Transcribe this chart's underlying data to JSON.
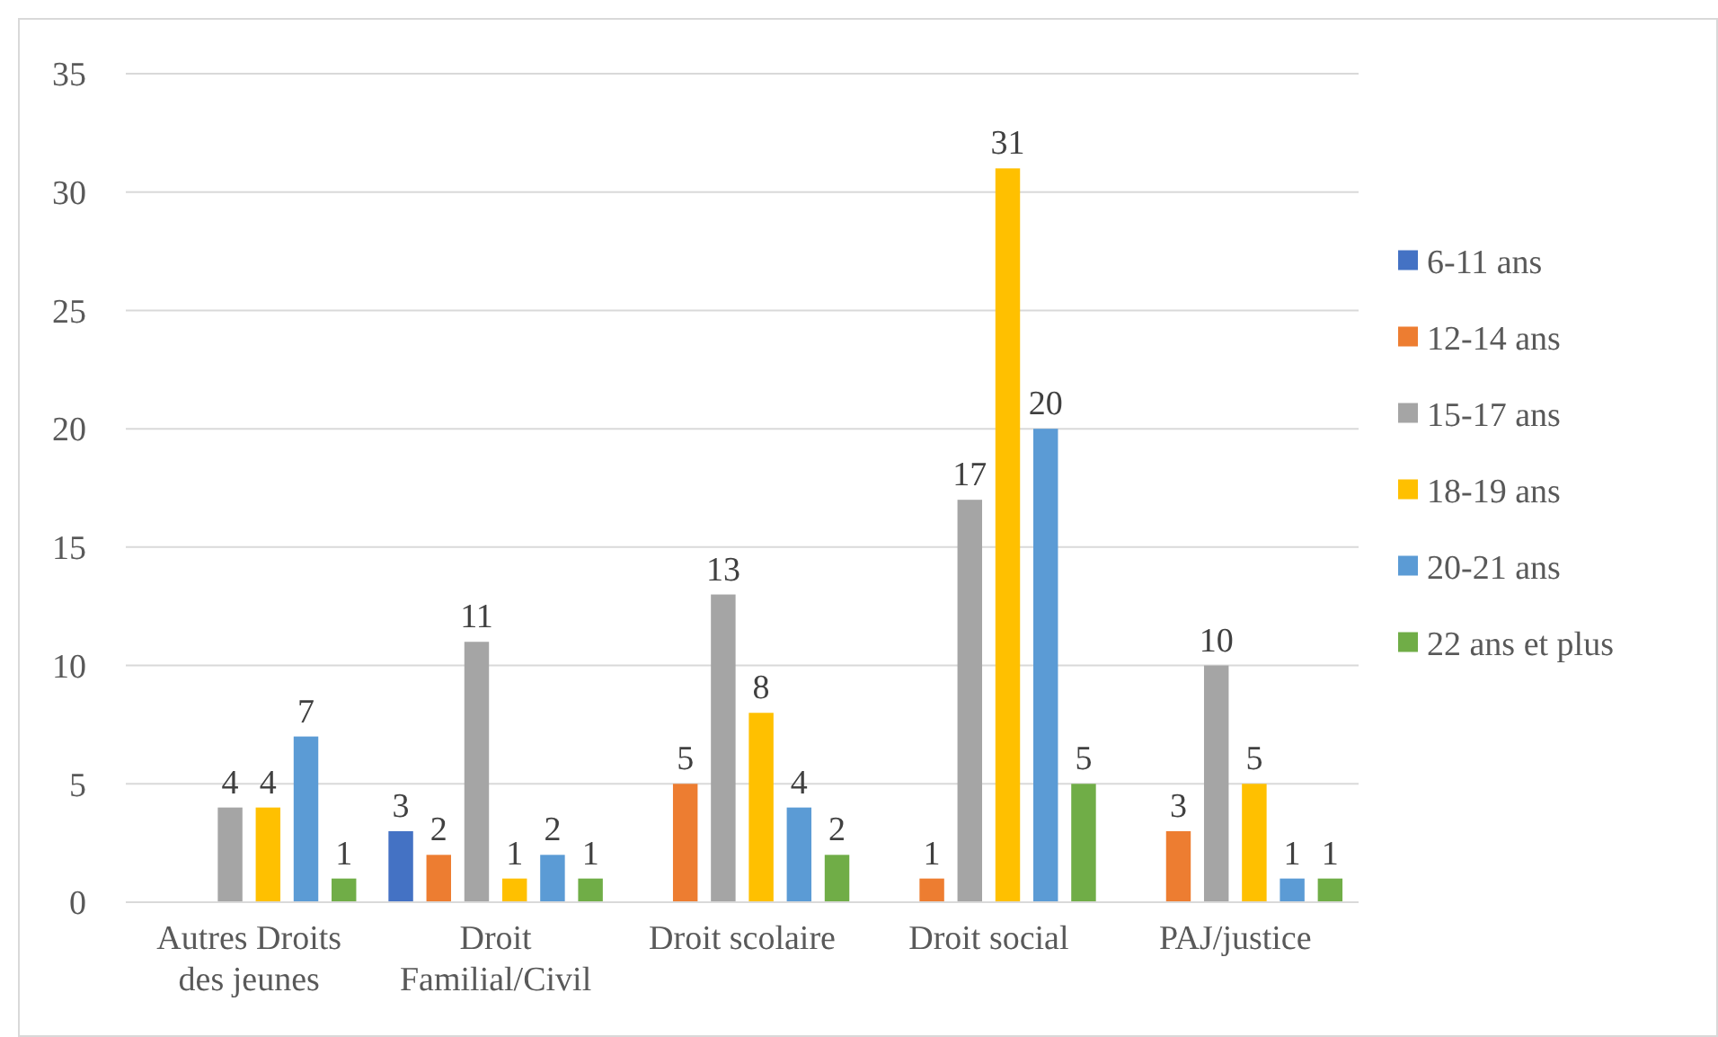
{
  "chart_data": {
    "type": "bar",
    "categories": [
      "Autres Droits des jeunes",
      "Droit Familial/Civil",
      "Droit scolaire",
      "Droit social",
      "PAJ/justice"
    ],
    "series": [
      {
        "name": "6-11 ans",
        "color": "#4472c4",
        "values": [
          null,
          3,
          null,
          null,
          null
        ]
      },
      {
        "name": "12-14 ans",
        "color": "#ed7d31",
        "values": [
          null,
          2,
          5,
          1,
          3
        ]
      },
      {
        "name": "15-17 ans",
        "color": "#a5a5a5",
        "values": [
          4,
          11,
          13,
          17,
          10
        ]
      },
      {
        "name": "18-19 ans",
        "color": "#ffc000",
        "values": [
          4,
          1,
          8,
          31,
          5
        ]
      },
      {
        "name": "20-21 ans",
        "color": "#5b9bd5",
        "values": [
          7,
          2,
          4,
          20,
          1
        ]
      },
      {
        "name": "22 ans et plus",
        "color": "#70ad47",
        "values": [
          1,
          1,
          2,
          5,
          1
        ]
      }
    ],
    "ylim": [
      0,
      35
    ],
    "yticks": [
      0,
      5,
      10,
      15,
      20,
      25,
      30,
      35
    ],
    "grid": "y",
    "legend": "right",
    "data_labels": true
  }
}
